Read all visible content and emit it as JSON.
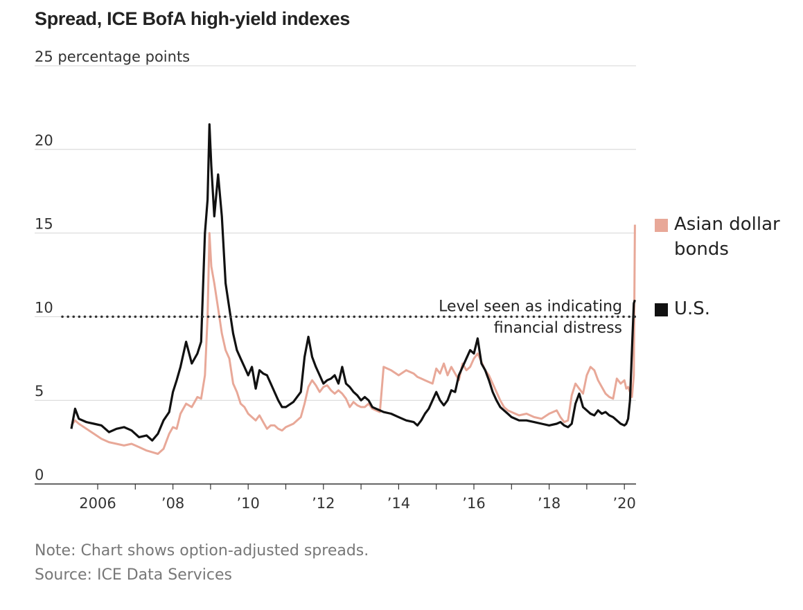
{
  "chart_data": {
    "type": "line",
    "title": "Spread, ICE BofA high-yield indexes",
    "ylabel": "",
    "y_unit_label": "25 percentage points",
    "xlabel": "",
    "ylim": [
      0,
      25
    ],
    "xlim": [
      2005.2,
      2020.4
    ],
    "yticks": [
      {
        "value": 25,
        "label": "25 percentage points"
      },
      {
        "value": 20,
        "label": "20"
      },
      {
        "value": 15,
        "label": "15"
      },
      {
        "value": 10,
        "label": "10"
      },
      {
        "value": 5,
        "label": "5"
      },
      {
        "value": 0,
        "label": "0"
      }
    ],
    "xticks": [
      {
        "value": 2006,
        "label": "2006"
      },
      {
        "value": 2008,
        "label": "’08"
      },
      {
        "value": 2010,
        "label": "’10"
      },
      {
        "value": 2012,
        "label": "’12"
      },
      {
        "value": 2014,
        "label": "’14"
      },
      {
        "value": 2016,
        "label": "’16"
      },
      {
        "value": 2018,
        "label": "’18"
      },
      {
        "value": 2020,
        "label": "’20"
      }
    ],
    "grid": true,
    "legend_position": "right",
    "threshold": {
      "value": 10,
      "label_lines": [
        "Level seen as indicating",
        "financial distress"
      ]
    },
    "series": [
      {
        "name": "Asian dollar bonds",
        "color": "#e8a898",
        "x": [
          2005.3,
          2005.4,
          2005.5,
          2005.7,
          2005.9,
          2006.1,
          2006.3,
          2006.5,
          2006.7,
          2006.9,
          2007.1,
          2007.3,
          2007.45,
          2007.6,
          2007.75,
          2007.9,
          2008.0,
          2008.1,
          2008.2,
          2008.35,
          2008.5,
          2008.65,
          2008.75,
          2008.85,
          2008.92,
          2008.97,
          2009.02,
          2009.1,
          2009.2,
          2009.3,
          2009.4,
          2009.5,
          2009.6,
          2009.7,
          2009.8,
          2009.9,
          2010.0,
          2010.1,
          2010.2,
          2010.3,
          2010.4,
          2010.5,
          2010.6,
          2010.7,
          2010.8,
          2010.9,
          2011.0,
          2011.2,
          2011.4,
          2011.5,
          2011.6,
          2011.7,
          2011.8,
          2011.9,
          2012.0,
          2012.1,
          2012.2,
          2012.3,
          2012.4,
          2012.5,
          2012.6,
          2012.7,
          2012.8,
          2012.9,
          2013.0,
          2013.1,
          2013.2,
          2013.3,
          2013.4,
          2013.5,
          2013.6,
          2013.8,
          2014.0,
          2014.2,
          2014.4,
          2014.5,
          2014.6,
          2014.7,
          2014.8,
          2014.9,
          2015.0,
          2015.1,
          2015.2,
          2015.3,
          2015.4,
          2015.5,
          2015.6,
          2015.7,
          2015.8,
          2015.9,
          2016.0,
          2016.1,
          2016.2,
          2016.3,
          2016.4,
          2016.5,
          2016.6,
          2016.7,
          2016.8,
          2016.9,
          2017.0,
          2017.2,
          2017.4,
          2017.6,
          2017.8,
          2018.0,
          2018.2,
          2018.3,
          2018.4,
          2018.5,
          2018.6,
          2018.7,
          2018.8,
          2018.9,
          2019.0,
          2019.1,
          2019.2,
          2019.3,
          2019.4,
          2019.5,
          2019.6,
          2019.7,
          2019.8,
          2019.9,
          2020.0,
          2020.05,
          2020.1,
          2020.15,
          2020.2,
          2020.25,
          2020.28
        ],
        "y": [
          3.5,
          3.8,
          3.6,
          3.3,
          3.0,
          2.7,
          2.5,
          2.4,
          2.3,
          2.4,
          2.2,
          2.0,
          1.9,
          1.8,
          2.1,
          3.0,
          3.4,
          3.3,
          4.2,
          4.8,
          4.6,
          5.2,
          5.1,
          6.5,
          10.0,
          15.0,
          13.0,
          12.0,
          10.5,
          9.0,
          8.0,
          7.5,
          6.0,
          5.5,
          4.8,
          4.6,
          4.2,
          4.0,
          3.8,
          4.1,
          3.7,
          3.3,
          3.5,
          3.5,
          3.3,
          3.2,
          3.4,
          3.6,
          4.0,
          4.8,
          5.8,
          6.2,
          5.9,
          5.5,
          5.8,
          5.9,
          5.6,
          5.4,
          5.6,
          5.4,
          5.1,
          4.6,
          4.9,
          4.7,
          4.6,
          4.6,
          4.8,
          4.5,
          4.4,
          4.3,
          7.0,
          6.8,
          6.5,
          6.8,
          6.6,
          6.4,
          6.3,
          6.2,
          6.1,
          6.0,
          6.9,
          6.6,
          7.2,
          6.5,
          7.0,
          6.6,
          6.2,
          7.2,
          6.8,
          7.0,
          7.5,
          7.8,
          7.3,
          6.8,
          6.5,
          6.0,
          5.5,
          5.0,
          4.6,
          4.4,
          4.3,
          4.1,
          4.2,
          4.0,
          3.9,
          4.2,
          4.4,
          4.0,
          3.7,
          3.8,
          5.3,
          6.0,
          5.7,
          5.4,
          6.5,
          7.0,
          6.8,
          6.2,
          5.8,
          5.4,
          5.2,
          5.1,
          6.3,
          6.0,
          6.2,
          5.7,
          5.8,
          5.5,
          5.2,
          6.5,
          15.5
        ]
      },
      {
        "name": "U.S.",
        "color": "#111111",
        "x": [
          2005.3,
          2005.4,
          2005.5,
          2005.7,
          2005.9,
          2006.1,
          2006.3,
          2006.5,
          2006.7,
          2006.9,
          2007.1,
          2007.3,
          2007.45,
          2007.6,
          2007.75,
          2007.9,
          2008.0,
          2008.1,
          2008.2,
          2008.35,
          2008.5,
          2008.65,
          2008.75,
          2008.85,
          2008.92,
          2008.97,
          2009.02,
          2009.1,
          2009.2,
          2009.3,
          2009.4,
          2009.5,
          2009.6,
          2009.7,
          2009.8,
          2009.9,
          2010.0,
          2010.1,
          2010.2,
          2010.3,
          2010.4,
          2010.5,
          2010.6,
          2010.7,
          2010.8,
          2010.9,
          2011.0,
          2011.2,
          2011.4,
          2011.5,
          2011.6,
          2011.7,
          2011.8,
          2011.9,
          2012.0,
          2012.1,
          2012.2,
          2012.3,
          2012.4,
          2012.5,
          2012.6,
          2012.7,
          2012.8,
          2012.9,
          2013.0,
          2013.1,
          2013.2,
          2013.3,
          2013.4,
          2013.5,
          2013.6,
          2013.8,
          2014.0,
          2014.2,
          2014.4,
          2014.5,
          2014.6,
          2014.7,
          2014.8,
          2014.9,
          2015.0,
          2015.1,
          2015.2,
          2015.3,
          2015.4,
          2015.5,
          2015.6,
          2015.7,
          2015.8,
          2015.9,
          2016.0,
          2016.1,
          2016.2,
          2016.3,
          2016.4,
          2016.5,
          2016.6,
          2016.7,
          2016.8,
          2016.9,
          2017.0,
          2017.2,
          2017.4,
          2017.6,
          2017.8,
          2018.0,
          2018.2,
          2018.3,
          2018.4,
          2018.5,
          2018.6,
          2018.7,
          2018.8,
          2018.9,
          2019.0,
          2019.1,
          2019.2,
          2019.3,
          2019.4,
          2019.5,
          2019.6,
          2019.7,
          2019.8,
          2019.9,
          2020.0,
          2020.05,
          2020.1,
          2020.15,
          2020.2,
          2020.25,
          2020.28
        ],
        "y": [
          3.3,
          4.5,
          3.9,
          3.7,
          3.6,
          3.5,
          3.1,
          3.3,
          3.4,
          3.2,
          2.8,
          2.9,
          2.6,
          3.0,
          3.8,
          4.3,
          5.5,
          6.2,
          7.0,
          8.5,
          7.2,
          7.8,
          8.5,
          15.0,
          17.0,
          21.5,
          19.0,
          16.0,
          18.5,
          16.0,
          12.0,
          10.5,
          9.0,
          8.0,
          7.5,
          7.0,
          6.5,
          7.0,
          5.7,
          6.8,
          6.6,
          6.5,
          6.0,
          5.5,
          5.0,
          4.6,
          4.6,
          4.9,
          5.5,
          7.6,
          8.8,
          7.6,
          7.0,
          6.5,
          6.0,
          6.2,
          6.3,
          6.5,
          6.0,
          7.0,
          6.0,
          5.8,
          5.5,
          5.3,
          5.0,
          5.2,
          5.0,
          4.6,
          4.5,
          4.4,
          4.3,
          4.2,
          4.0,
          3.8,
          3.7,
          3.5,
          3.8,
          4.2,
          4.5,
          5.0,
          5.5,
          5.0,
          4.7,
          5.0,
          5.6,
          5.5,
          6.5,
          7.0,
          7.5,
          8.0,
          7.8,
          8.7,
          7.2,
          6.8,
          6.2,
          5.5,
          5.0,
          4.6,
          4.4,
          4.2,
          4.0,
          3.8,
          3.8,
          3.7,
          3.6,
          3.5,
          3.6,
          3.7,
          3.5,
          3.4,
          3.6,
          4.8,
          5.4,
          4.6,
          4.4,
          4.2,
          4.1,
          4.4,
          4.2,
          4.3,
          4.1,
          4.0,
          3.8,
          3.6,
          3.5,
          3.6,
          3.9,
          5.0,
          8.0,
          10.8,
          11.0
        ]
      }
    ]
  },
  "note": "Note: Chart shows option-adjusted spreads.",
  "source": "Source: ICE Data Services"
}
